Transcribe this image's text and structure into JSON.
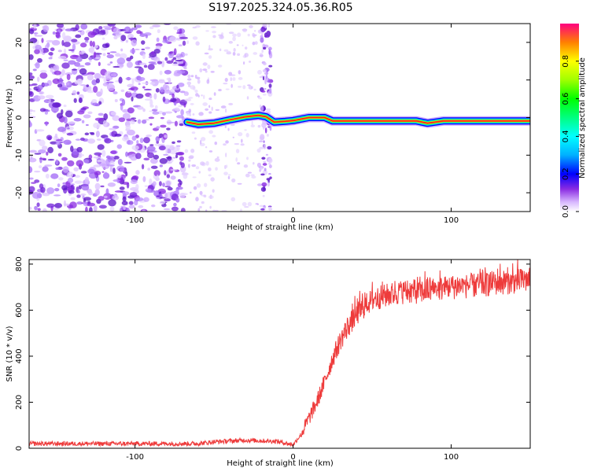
{
  "title": "S197.2025.324.05.36.R05",
  "colors": {
    "trace": "#ee3b3b",
    "spectrogram_noise": "#8a2be2",
    "frame": "#000000"
  },
  "chart_data": [
    {
      "type": "heatmap",
      "name": "spectrogram",
      "xlabel": "Height of straight line (km)",
      "ylabel": "Frequency (Hz)",
      "xlim": [
        -167,
        150
      ],
      "ylim": [
        -25,
        25
      ],
      "xticks": [
        -100,
        0,
        100
      ],
      "yticks": [
        -20,
        -10,
        0,
        10,
        20
      ],
      "colorbar": {
        "label": "Normalized spectral amplitude",
        "range": [
          0,
          1
        ],
        "ticks": [
          0.0,
          0.2,
          0.4,
          0.6,
          0.8
        ]
      },
      "carrier_track": [
        {
          "x": -67,
          "y": -1.2
        },
        {
          "x": -60,
          "y": -1.8
        },
        {
          "x": -50,
          "y": -1.5
        },
        {
          "x": -40,
          "y": -0.6
        },
        {
          "x": -30,
          "y": 0.2
        },
        {
          "x": -22,
          "y": 0.6
        },
        {
          "x": -17,
          "y": 0.2
        },
        {
          "x": -12,
          "y": -1.2
        },
        {
          "x": -5,
          "y": -1.0
        },
        {
          "x": 0,
          "y": -0.8
        },
        {
          "x": 10,
          "y": 0.0
        },
        {
          "x": 20,
          "y": 0.0
        },
        {
          "x": 25,
          "y": -0.9
        },
        {
          "x": 60,
          "y": -0.9
        },
        {
          "x": 78,
          "y": -0.9
        },
        {
          "x": 85,
          "y": -1.5
        },
        {
          "x": 95,
          "y": -0.9
        },
        {
          "x": 120,
          "y": -0.9
        },
        {
          "x": 150,
          "y": -0.9
        }
      ]
    },
    {
      "type": "line",
      "name": "snr",
      "xlabel": "Height of straight line (km)",
      "ylabel": "SNR (10 * v/v)",
      "xlim": [
        -167,
        150
      ],
      "ylim": [
        0,
        820
      ],
      "xticks": [
        -100,
        0,
        100
      ],
      "yticks": [
        0,
        200,
        400,
        600,
        800
      ],
      "trend": [
        {
          "x": -167,
          "y": 20
        },
        {
          "x": -60,
          "y": 20
        },
        {
          "x": -50,
          "y": 28
        },
        {
          "x": -30,
          "y": 35
        },
        {
          "x": -10,
          "y": 30
        },
        {
          "x": 0,
          "y": 15
        },
        {
          "x": 5,
          "y": 60
        },
        {
          "x": 10,
          "y": 130
        },
        {
          "x": 15,
          "y": 200
        },
        {
          "x": 20,
          "y": 290
        },
        {
          "x": 25,
          "y": 390
        },
        {
          "x": 30,
          "y": 470
        },
        {
          "x": 35,
          "y": 530
        },
        {
          "x": 40,
          "y": 580
        },
        {
          "x": 45,
          "y": 615
        },
        {
          "x": 50,
          "y": 645
        },
        {
          "x": 60,
          "y": 665
        },
        {
          "x": 70,
          "y": 680
        },
        {
          "x": 80,
          "y": 680
        },
        {
          "x": 90,
          "y": 690
        },
        {
          "x": 100,
          "y": 700
        },
        {
          "x": 110,
          "y": 705
        },
        {
          "x": 120,
          "y": 710
        },
        {
          "x": 130,
          "y": 720
        },
        {
          "x": 140,
          "y": 725
        },
        {
          "x": 150,
          "y": 730
        }
      ]
    }
  ]
}
